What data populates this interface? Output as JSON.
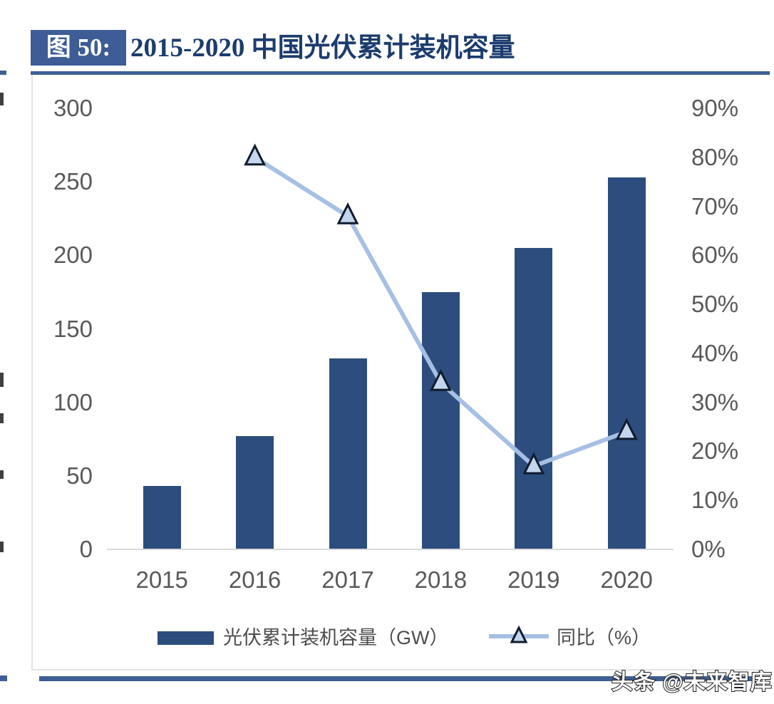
{
  "figure": {
    "badge": "图 50:",
    "title": "2015-2020 中国光伏累计装机容量"
  },
  "chart_data": {
    "type": "bar",
    "subtype": "bar+line combo, dual axis",
    "title": "2015-2020 中国光伏累计装机容量",
    "categories": [
      "2015",
      "2016",
      "2017",
      "2018",
      "2019",
      "2020"
    ],
    "series": [
      {
        "name": "光伏累计装机容量（GW）",
        "type": "bar",
        "axis": "left",
        "values": [
          43,
          77,
          130,
          175,
          205,
          253
        ],
        "color": "#2c4d7d"
      },
      {
        "name": "同比（%）",
        "type": "line",
        "axis": "right",
        "values": [
          null,
          80,
          68,
          34,
          17,
          24
        ],
        "color": "#a6bfe4",
        "marker": "triangle-up",
        "marker_fill": "#c4d5ee",
        "marker_stroke": "#101b2e"
      }
    ],
    "left_axis": {
      "min": 0,
      "max": 300,
      "ticks": [
        "300",
        "250",
        "200",
        "150",
        "100",
        "50",
        "0"
      ]
    },
    "right_axis": {
      "min": 0,
      "max": 90,
      "ticks": [
        "90%",
        "80%",
        "70%",
        "60%",
        "50%",
        "40%",
        "30%",
        "20%",
        "10%",
        "0%"
      ]
    },
    "legend": [
      {
        "label": "光伏累计装机容量（GW）",
        "swatch": "bar",
        "color": "#2c4d7d"
      },
      {
        "label": "同比（%）",
        "swatch": "line-triangle",
        "color": "#a6bfe4"
      }
    ],
    "gridlines": false,
    "legend_position": "bottom"
  },
  "watermark": {
    "text": "头条 @未来智库"
  }
}
